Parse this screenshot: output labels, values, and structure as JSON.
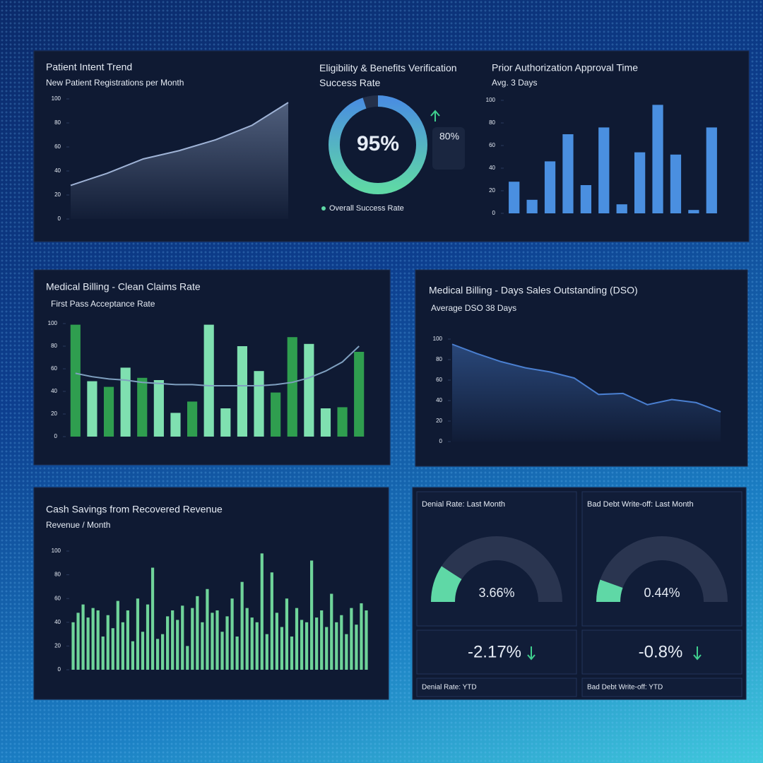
{
  "chart_data": [
    {
      "type": "area",
      "title": "Patient Intent Trend",
      "subtitle": "New Patient Registrations per Month",
      "values": [
        28,
        38,
        50,
        57,
        66,
        78,
        97
      ],
      "ylim": [
        0,
        100
      ],
      "yticks": [
        0,
        20,
        40,
        60,
        80,
        100
      ],
      "color": "#9fb3d6"
    },
    {
      "type": "donut",
      "title": "Eligibility & Benefits Verification Success Rate",
      "values": [
        95
      ],
      "value_labels": [
        "95%"
      ],
      "ylim": [
        0,
        100
      ],
      "colors": [
        "#5fd8a6",
        "#4a8fe0"
      ],
      "legend": "Overall Success Rate",
      "change": 80,
      "change_label": "80%"
    },
    {
      "type": "bar",
      "title": "Prior Authorization Approval Time",
      "subtitle": "Avg. 3 Days",
      "values": [
        28,
        12,
        46,
        70,
        25,
        76,
        8,
        54,
        96,
        52,
        3,
        76
      ],
      "ylim": [
        0,
        100
      ],
      "yticks": [
        0,
        20,
        40,
        60,
        80,
        100
      ],
      "color": "#4a8fe0"
    },
    {
      "type": "combo",
      "title": "Medical Billing - Clean Claims Rate",
      "subtitle": "First Pass Acceptance Rate",
      "values": [
        99,
        49,
        44,
        61,
        52,
        50,
        21,
        31,
        99,
        25,
        80,
        58,
        39,
        88,
        82,
        25,
        26,
        75
      ],
      "colors": [
        "#2f9e4f",
        "#7fe0b0",
        "#2f9e4f",
        "#7fe0b0",
        "#2f9e4f",
        "#7fe0b0",
        "#7fe0b0",
        "#2f9e4f",
        "#7fe0b0",
        "#7fe0b0",
        "#7fe0b0",
        "#7fe0b0",
        "#2f9e4f",
        "#2f9e4f",
        "#7fe0b0",
        "#7fe0b0",
        "#2f9e4f",
        "#2f9e4f"
      ],
      "line_values": [
        56,
        53,
        51,
        50,
        48,
        47,
        46,
        46,
        45,
        45,
        45,
        45,
        46,
        48,
        52,
        58,
        66,
        80
      ],
      "line_color": "#7fa0c0",
      "ylim": [
        0,
        100
      ],
      "yticks": [
        0,
        20,
        40,
        60,
        80,
        100
      ]
    },
    {
      "type": "area",
      "title": "Medical Billing - Days Sales Outstanding (DSO)",
      "subtitle": "Average DSO 38 Days",
      "values": [
        95,
        86,
        78,
        72,
        68,
        62,
        46,
        47,
        36,
        41,
        38,
        29
      ],
      "ylim": [
        0,
        100
      ],
      "yticks": [
        0,
        20,
        40,
        60,
        80,
        100
      ],
      "color": "#4a7fd0"
    },
    {
      "type": "bar",
      "title": "Cash Savings from Recovered Revenue",
      "subtitle": "Revenue / Month",
      "values": [
        40,
        48,
        55,
        44,
        52,
        50,
        28,
        46,
        35,
        58,
        40,
        50,
        24,
        60,
        32,
        55,
        86,
        26,
        30,
        45,
        50,
        42,
        54,
        20,
        52,
        62,
        40,
        68,
        48,
        50,
        32,
        45,
        60,
        28,
        74,
        52,
        44,
        40,
        98,
        30,
        82,
        48,
        36,
        60,
        28,
        52,
        42,
        40,
        92,
        44,
        50,
        36,
        64,
        40,
        46,
        30,
        52,
        38,
        56,
        50
      ],
      "ylim": [
        0,
        100
      ],
      "yticks": [
        0,
        20,
        40,
        60,
        80,
        100
      ],
      "color": "#6fd49a"
    },
    {
      "type": "gauge",
      "title": "Denial Rate: Last Month",
      "values": [
        3.66
      ],
      "value_labels": [
        "3.66%"
      ],
      "ylim": [
        0,
        20
      ],
      "color": "#5fd8a6",
      "change": -2.17,
      "change_label": "-2.17%",
      "footer": "Denial Rate: YTD"
    },
    {
      "type": "gauge",
      "title": "Bad Debt Write-off: Last Month",
      "values": [
        0.44
      ],
      "value_labels": [
        "0.44%"
      ],
      "ylim": [
        0,
        4
      ],
      "color": "#5fd8a6",
      "change": -0.8,
      "change_label": "-0.8%",
      "footer": "Bad Debt Write-off: YTD"
    }
  ]
}
